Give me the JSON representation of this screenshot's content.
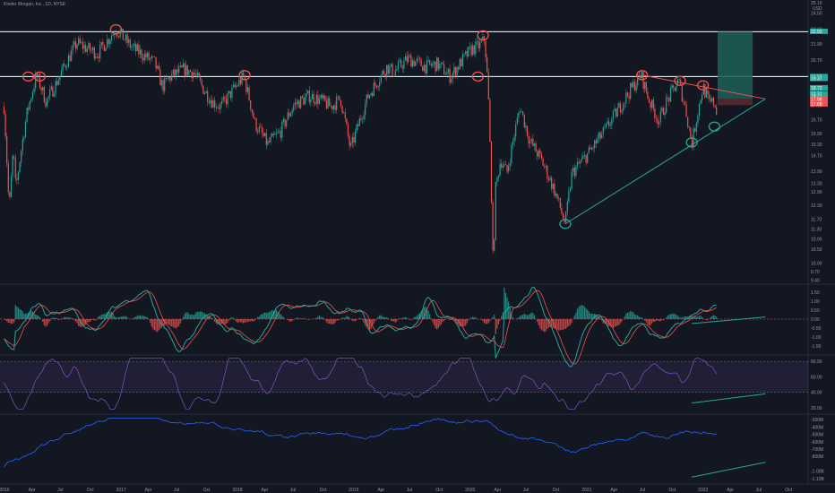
{
  "header": {
    "title": "Kinder Morgan, Inc., 1D, NYSE"
  },
  "colors": {
    "background": "#131722",
    "up": "#26a69a",
    "down": "#ef5350",
    "white_level": "#ffffff",
    "resistance": "#ef5350",
    "support": "#26a69a",
    "circle_high": "#ef5350",
    "circle_low": "#26a69a",
    "macd_line": "#26a69a",
    "signal_line": "#ef5350",
    "rsi_line": "#7e57c2",
    "rsi_band": "#7e57c2",
    "obv_line": "#2962ff",
    "projection_green": "#1f5f57",
    "projection_red": "#5a2a33"
  },
  "chart_data": {
    "type": "line",
    "price_axis": {
      "ticks": [
        "24.50",
        "23.10",
        "21.90",
        "20.70",
        "19.50",
        "18.50",
        "17.60",
        "16.70",
        "15.90",
        "15.30",
        "14.70",
        "13.90",
        "13.30",
        "12.90",
        "12.30",
        "11.70",
        "11.30",
        "10.90",
        "10.50",
        "10.00",
        "9.70",
        "9.40"
      ],
      "top_labels": [
        "25.10",
        "USD"
      ],
      "level_labels": [
        "22.93",
        "19.50",
        "19.37",
        "18.73",
        "18.34",
        "18.21",
        "17.98",
        "17.68"
      ],
      "ylim": [
        9.3,
        25.0
      ],
      "scale": "log",
      "horizontal_levels": [
        22.9,
        19.5
      ]
    },
    "x_axis": {
      "tick_labels": [
        "2016",
        "Apr",
        "Jul",
        "Oct",
        "2017",
        "Apr",
        "Jul",
        "Oct",
        "2018",
        "Apr",
        "Jul",
        "Oct",
        "2019",
        "Apr",
        "Jul",
        "Oct",
        "2020",
        "Apr",
        "Jul",
        "Oct",
        "2021",
        "Apr",
        "Jul",
        "Oct",
        "2022",
        "Apr",
        "Jul",
        "Oct"
      ]
    },
    "price_keypoints": [
      [
        "2016-01-04",
        17.5
      ],
      [
        "2016-01-20",
        12.0
      ],
      [
        "2016-02-02",
        15.0
      ],
      [
        "2016-02-10",
        13.0
      ],
      [
        "2016-03-15",
        17.0
      ],
      [
        "2016-04-15",
        19.6
      ],
      [
        "2016-05-15",
        17.8
      ],
      [
        "2016-06-15",
        19.0
      ],
      [
        "2016-07-15",
        20.4
      ],
      [
        "2016-08-20",
        22.0
      ],
      [
        "2016-09-25",
        21.5
      ],
      [
        "2016-10-25",
        21.2
      ],
      [
        "2016-12-20",
        23.1
      ],
      [
        "2017-02-10",
        21.6
      ],
      [
        "2017-04-20",
        20.5
      ],
      [
        "2017-05-15",
        18.8
      ],
      [
        "2017-06-10",
        19.5
      ],
      [
        "2017-07-20",
        20.0
      ],
      [
        "2017-08-20",
        19.8
      ],
      [
        "2017-09-25",
        18.5
      ],
      [
        "2017-10-20",
        17.8
      ],
      [
        "2017-11-15",
        17.5
      ],
      [
        "2017-12-20",
        18.5
      ],
      [
        "2018-01-25",
        19.5
      ],
      [
        "2018-03-01",
        16.5
      ],
      [
        "2018-04-10",
        15.3
      ],
      [
        "2018-05-20",
        16.0
      ],
      [
        "2018-07-01",
        17.6
      ],
      [
        "2018-08-20",
        18.2
      ],
      [
        "2018-09-25",
        17.9
      ],
      [
        "2018-10-25",
        17.5
      ],
      [
        "2018-11-25",
        18.0
      ],
      [
        "2018-12-26",
        15.0
      ],
      [
        "2019-02-20",
        18.2
      ],
      [
        "2019-04-20",
        20.2
      ],
      [
        "2019-05-10",
        19.8
      ],
      [
        "2019-06-25",
        20.8
      ],
      [
        "2019-08-20",
        20.2
      ],
      [
        "2019-09-25",
        20.4
      ],
      [
        "2019-11-05",
        19.5
      ],
      [
        "2019-12-20",
        20.9
      ],
      [
        "2020-01-10",
        21.5
      ],
      [
        "2020-02-05",
        21.8
      ],
      [
        "2020-02-20",
        22.3
      ],
      [
        "2020-03-02",
        18.5
      ],
      [
        "2020-03-18",
        9.5
      ],
      [
        "2020-03-25",
        13.0
      ],
      [
        "2020-04-10",
        14.5
      ],
      [
        "2020-04-30",
        13.8
      ],
      [
        "2020-05-25",
        16.0
      ],
      [
        "2020-06-10",
        17.5
      ],
      [
        "2020-07-10",
        15.5
      ],
      [
        "2020-08-15",
        14.5
      ],
      [
        "2020-09-25",
        13.0
      ],
      [
        "2020-10-30",
        11.5
      ],
      [
        "2020-11-20",
        13.8
      ],
      [
        "2021-01-10",
        14.8
      ],
      [
        "2021-03-01",
        16.0
      ],
      [
        "2021-04-10",
        17.2
      ],
      [
        "2021-05-20",
        18.5
      ],
      [
        "2021-06-25",
        19.6
      ],
      [
        "2021-07-20",
        17.9
      ],
      [
        "2021-08-20",
        16.6
      ],
      [
        "2021-09-10",
        17.7
      ],
      [
        "2021-10-20",
        19.2
      ],
      [
        "2021-11-10",
        17.5
      ],
      [
        "2021-12-01",
        15.3
      ],
      [
        "2022-01-05",
        18.8
      ],
      [
        "2022-01-25",
        17.7
      ],
      [
        "2022-02-10",
        17.8
      ],
      [
        "2022-02-20",
        17.0
      ]
    ],
    "annotations": {
      "circles_high": [
        [
          "2016-03-20",
          19.5
        ],
        [
          "2016-04-25",
          19.5
        ],
        [
          "2016-12-20",
          23.1
        ],
        [
          "2018-01-28",
          19.6
        ],
        [
          "2020-01-30",
          19.5
        ],
        [
          "2020-02-15",
          22.6
        ],
        [
          "2021-06-28",
          19.6
        ],
        [
          "2021-10-25",
          19.2
        ],
        [
          "2022-01-05",
          18.9
        ]
      ],
      "circles_low": [
        [
          "2020-10-30",
          11.5
        ],
        [
          "2021-12-01",
          15.4
        ],
        [
          "2022-02-10",
          16.3
        ]
      ],
      "resistance_line": [
        [
          "2021-06-28",
          19.6
        ],
        [
          "2022-07-20",
          18.0
        ]
      ],
      "support_line": [
        [
          "2020-10-30",
          11.5
        ],
        [
          "2022-07-20",
          18.0
        ]
      ],
      "projection": {
        "start": "2022-02-20",
        "end": "2022-06-10",
        "entry": 18.0,
        "target": 22.9,
        "stop": 17.6
      }
    },
    "macd": {
      "ticks": [
        "1.50",
        "1.00",
        "0.50",
        "0.00",
        "-0.50",
        "-1.00",
        "-1.50"
      ],
      "ylim": [
        -1.9,
        1.9
      ],
      "trend_line": [
        [
          "2021-12-01",
          -0.25
        ],
        [
          "2022-07-20",
          0.12
        ]
      ]
    },
    "rsi": {
      "ticks": [
        "80.00",
        "60.00",
        "40.00",
        "20.00"
      ],
      "band": [
        40,
        80
      ],
      "ylim": [
        14,
        86
      ],
      "trend_line": [
        [
          "2021-12-01",
          26
        ],
        [
          "2022-07-20",
          38
        ]
      ]
    },
    "obv": {
      "ticks": [
        "-300M",
        "-400M",
        "-500M",
        "-600M",
        "-700M",
        "-800M",
        "-1.00B",
        "-1.10B"
      ],
      "ylim": [
        -1.15,
        -0.25
      ],
      "trend_line": [
        [
          "2021-12-01",
          -1.08
        ],
        [
          "2022-07-20",
          -0.88
        ]
      ]
    }
  }
}
